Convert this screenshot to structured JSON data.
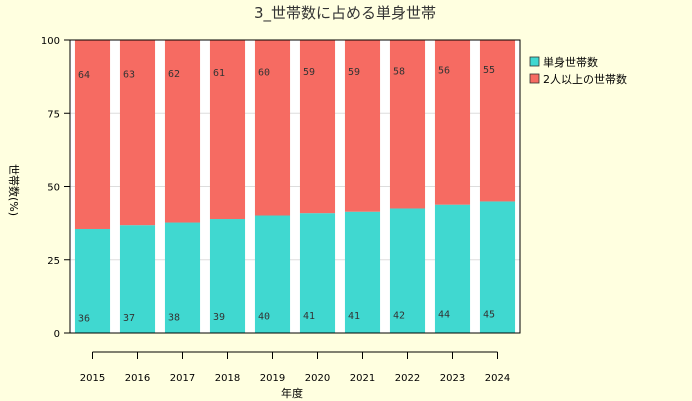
{
  "chart_data": {
    "type": "bar",
    "stacked": true,
    "title": "3_世帯数に占める単身世帯",
    "xlabel": "年度",
    "ylabel": "世帯数(%)",
    "categories": [
      "2015",
      "2016",
      "2017",
      "2018",
      "2019",
      "2020",
      "2021",
      "2022",
      "2023",
      "2024"
    ],
    "ylim": [
      0,
      100
    ],
    "yticks": [
      0,
      25,
      50,
      75,
      100
    ],
    "grid": true,
    "legend_position": "right",
    "series": [
      {
        "name": "単身世帯数",
        "color": "#40d8d0",
        "values": [
          35.5,
          36.8,
          37.7,
          38.9,
          40.1,
          40.9,
          41.4,
          42.5,
          43.8,
          44.9
        ],
        "labels": [
          "36",
          "37",
          "38",
          "39",
          "40",
          "41",
          "41",
          "42",
          "44",
          "45"
        ]
      },
      {
        "name": "2人以上の世帯数",
        "color": "#f66b62",
        "values": [
          64.5,
          63.2,
          62.3,
          61.1,
          59.9,
          59.1,
          58.6,
          57.5,
          56.2,
          55.1
        ],
        "labels": [
          "64",
          "63",
          "62",
          "61",
          "60",
          "59",
          "59",
          "58",
          "56",
          "55"
        ]
      }
    ]
  }
}
